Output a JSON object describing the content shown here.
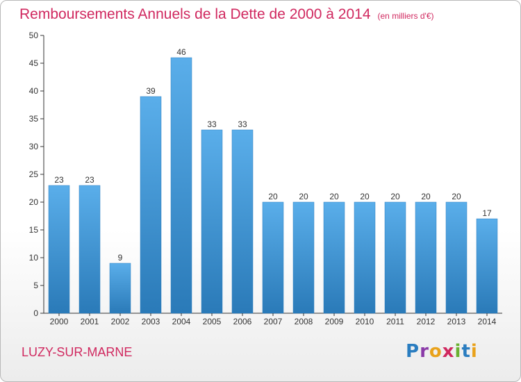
{
  "header": {
    "title": "Remboursements Annuels de la Dette de 2000 à 2014",
    "unit": "(en milliers d'€)"
  },
  "footer": {
    "location": "LUZY-SUR-MARNE",
    "logo_text": "Proxiti",
    "logo_letters": [
      "P",
      "r",
      "o",
      "x",
      "i",
      "t",
      "i"
    ],
    "logo_colors": [
      "#2a7dc0",
      "#8a3aa8",
      "#e9a21b",
      "#d0285f",
      "#6bb131",
      "#2a7dc0",
      "#e9a21b"
    ]
  },
  "colors": {
    "bar_light": "#5aaeea",
    "bar_dark": "#2a7ab8",
    "title": "#d0285f"
  },
  "chart_data": {
    "type": "bar",
    "title": "Remboursements Annuels de la Dette de 2000 à 2014",
    "unit_label": "(en milliers d'€)",
    "categories": [
      "2000",
      "2001",
      "2002",
      "2003",
      "2004",
      "2005",
      "2006",
      "2007",
      "2008",
      "2009",
      "2010",
      "2011",
      "2012",
      "2013",
      "2014"
    ],
    "values": [
      23,
      23,
      9,
      39,
      46,
      33,
      33,
      20,
      20,
      20,
      20,
      20,
      20,
      20,
      17
    ],
    "ylim": [
      0,
      50
    ],
    "yticks": [
      0,
      5,
      10,
      15,
      20,
      25,
      30,
      35,
      40,
      45,
      50
    ],
    "grid": false,
    "data_labels": true
  }
}
